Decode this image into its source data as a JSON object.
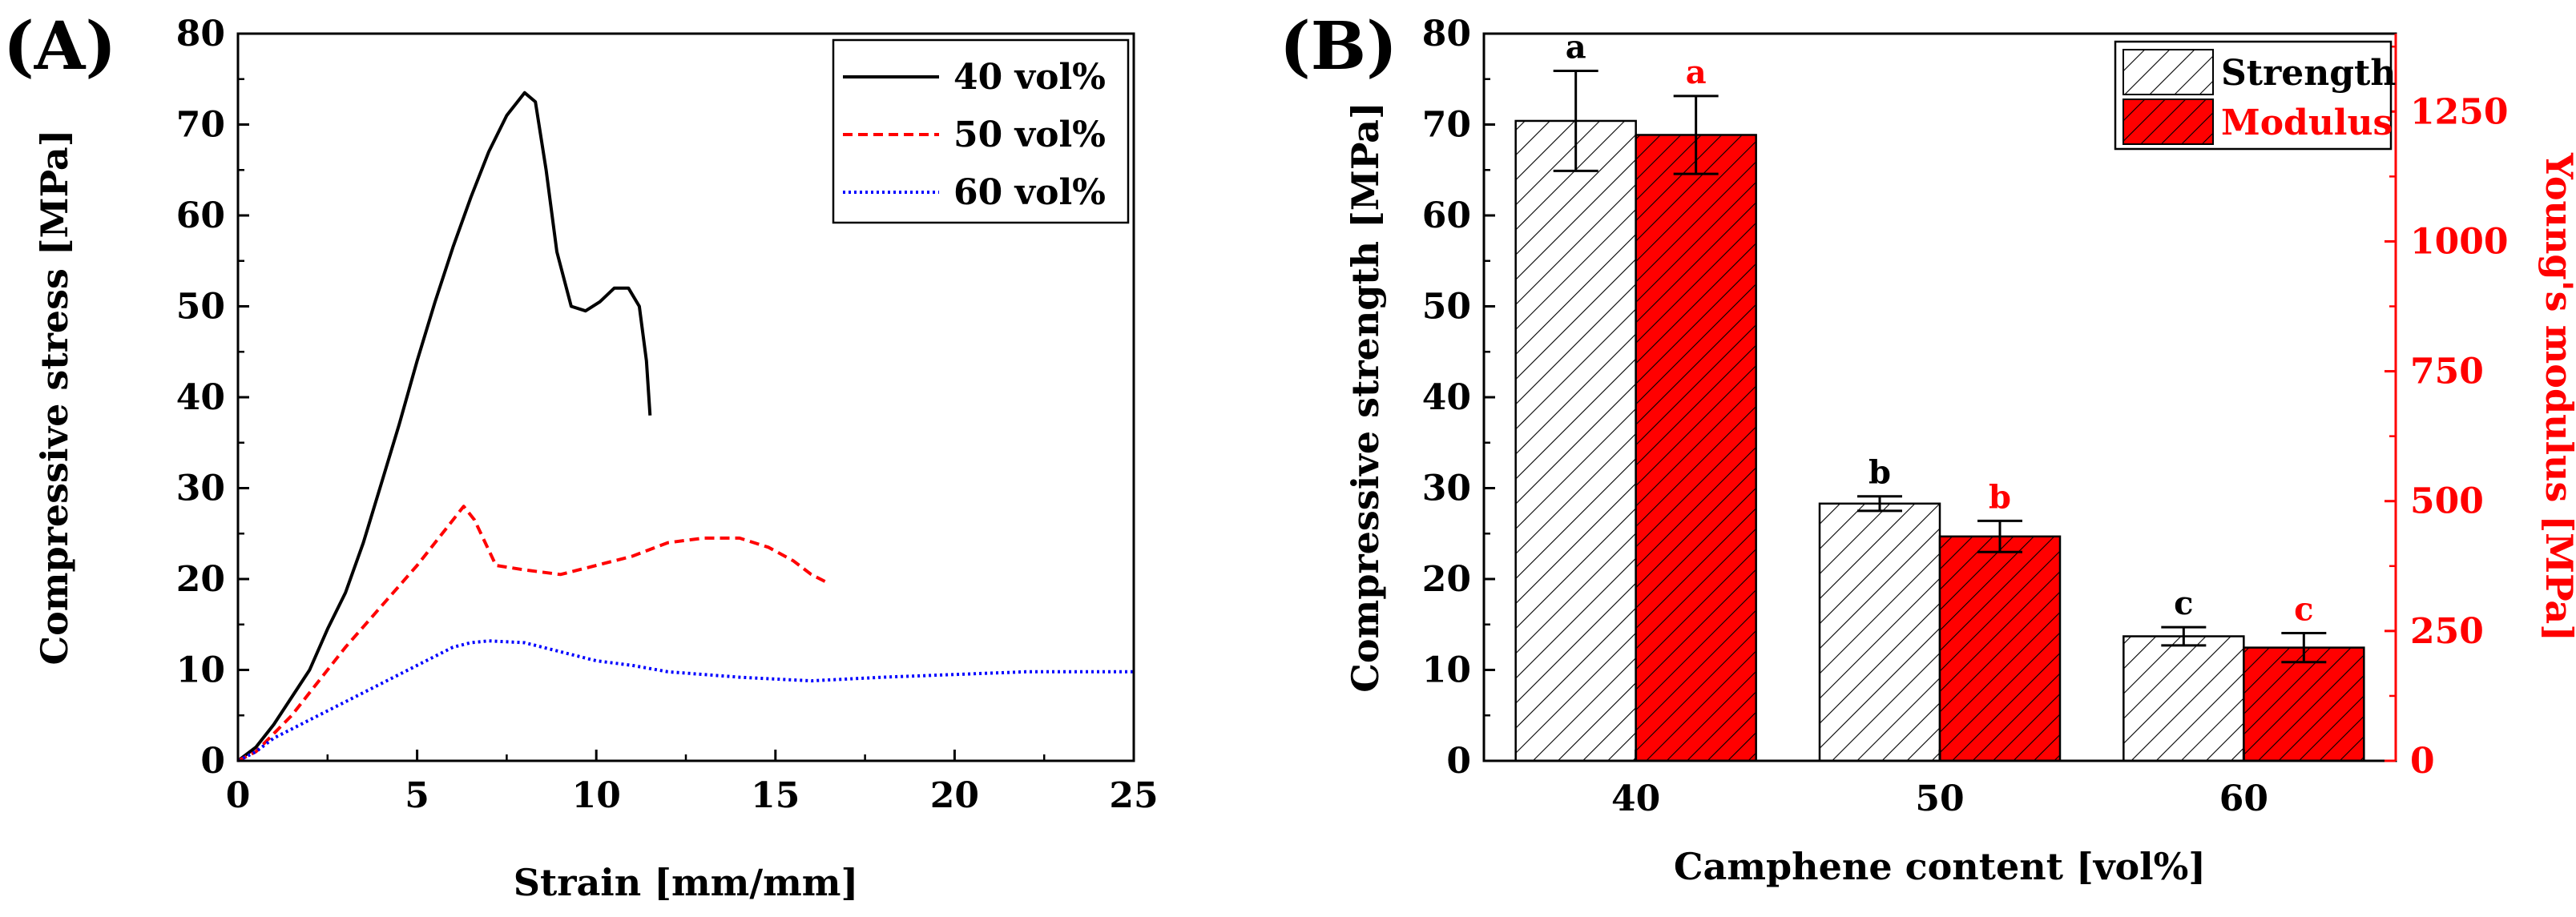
{
  "chart_data": [
    {
      "panel_label": "(A)",
      "type": "line",
      "title": "",
      "xlabel": "Strain [mm/mm]",
      "ylabel": "Compressive stress [MPa]",
      "xlim": [
        0,
        25
      ],
      "ylim": [
        0,
        80
      ],
      "xticks": [
        "0",
        "5",
        "10",
        "15",
        "20",
        "25"
      ],
      "yticks": [
        "0",
        "10",
        "20",
        "30",
        "40",
        "50",
        "60",
        "70",
        "80"
      ],
      "grid": false,
      "legend_position": "top-right",
      "series": [
        {
          "name": "40 vol%",
          "color": "#000000",
          "style": "solid",
          "x": [
            0,
            0.5,
            1.0,
            1.5,
            2.0,
            2.5,
            3.0,
            3.5,
            4.0,
            4.5,
            5.0,
            5.5,
            6.0,
            6.5,
            7.0,
            7.5,
            8.0,
            8.3,
            8.6,
            8.9,
            9.3,
            9.7,
            10.1,
            10.5,
            10.9,
            11.2,
            11.4,
            11.5
          ],
          "y": [
            0,
            1.5,
            4.0,
            7.0,
            10.0,
            14.5,
            18.5,
            24.0,
            30.5,
            37.0,
            44.0,
            50.5,
            56.5,
            62.0,
            67.0,
            71.0,
            73.5,
            72.5,
            65.0,
            56.0,
            50.0,
            49.5,
            50.5,
            52.0,
            52.0,
            50.0,
            44.0,
            38.0
          ]
        },
        {
          "name": "50 vol%",
          "color": "#ff0000",
          "style": "dashed",
          "x": [
            0,
            0.5,
            1.0,
            1.5,
            2.0,
            3.0,
            4.0,
            5.0,
            5.8,
            6.3,
            6.6,
            6.9,
            7.2,
            8.0,
            9.0,
            10.0,
            11.0,
            12.0,
            13.0,
            14.0,
            14.8,
            15.5,
            16.0,
            16.5
          ],
          "y": [
            0,
            1.0,
            3.0,
            5.0,
            7.5,
            12.5,
            17.0,
            21.5,
            25.5,
            28.0,
            26.5,
            24.0,
            21.5,
            21.0,
            20.5,
            21.5,
            22.5,
            24.0,
            24.5,
            24.5,
            23.5,
            22.0,
            20.5,
            19.5
          ]
        },
        {
          "name": "60 vol%",
          "color": "#0000ff",
          "style": "dotted",
          "x": [
            0,
            0.5,
            1.0,
            1.5,
            2.0,
            3.0,
            4.0,
            5.0,
            6.0,
            6.5,
            7.0,
            8.0,
            9.0,
            10.0,
            11.0,
            12.0,
            13.0,
            14.0,
            15.0,
            16.0,
            18.0,
            20.0,
            22.0,
            25.0
          ],
          "y": [
            0,
            1.0,
            2.5,
            3.5,
            4.5,
            6.5,
            8.5,
            10.5,
            12.5,
            13.0,
            13.2,
            13.0,
            12.0,
            11.0,
            10.5,
            9.8,
            9.5,
            9.2,
            9.0,
            8.8,
            9.2,
            9.5,
            9.8,
            9.8
          ]
        }
      ]
    },
    {
      "panel_label": "(B)",
      "type": "bar",
      "title": "",
      "xlabel": "Camphene content [vol%]",
      "ylabel": "Compressive strength [MPa]",
      "y2label": "Young's modulus [MPa]",
      "categories": [
        "40",
        "50",
        "60"
      ],
      "ylim": [
        0,
        80
      ],
      "y2lim": [
        0,
        1400
      ],
      "yticks": [
        "0",
        "10",
        "20",
        "30",
        "40",
        "50",
        "60",
        "70",
        "80"
      ],
      "y2ticks": [
        "0",
        "250",
        "500",
        "750",
        "1000",
        "1250"
      ],
      "grid": false,
      "legend_position": "top-right",
      "series": [
        {
          "name": "Strength",
          "axis": "left",
          "fill": "#ffffff",
          "hatch_color": "#000000",
          "values": [
            70.4,
            28.3,
            13.7
          ],
          "errors": [
            5.5,
            0.8,
            1.0
          ],
          "labels": [
            "a",
            "b",
            "c"
          ],
          "label_color": "#000000"
        },
        {
          "name": "Modulus",
          "axis": "right",
          "fill": "#ff0000",
          "hatch_color": "#000000",
          "values": [
            1205,
            432,
            218
          ],
          "errors": [
            75,
            30,
            28
          ],
          "labels": [
            "a",
            "b",
            "c"
          ],
          "label_color": "#ff0000"
        }
      ]
    }
  ]
}
